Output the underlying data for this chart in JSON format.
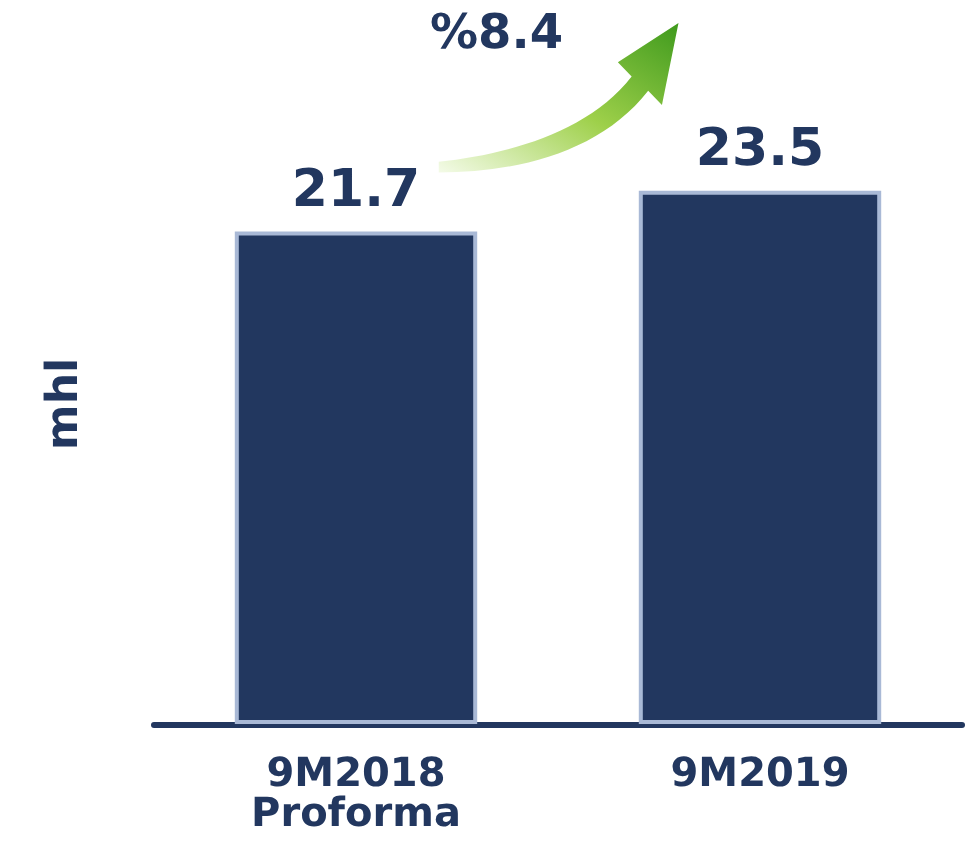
{
  "chart_data": {
    "type": "bar",
    "categories": [
      "9M2018\nProforma",
      "9M2019"
    ],
    "values": [
      21.7,
      23.5
    ],
    "color": "#22375f",
    "ylabel": "mhl",
    "data_labels": true,
    "annotations": [
      "%8.4"
    ]
  }
}
